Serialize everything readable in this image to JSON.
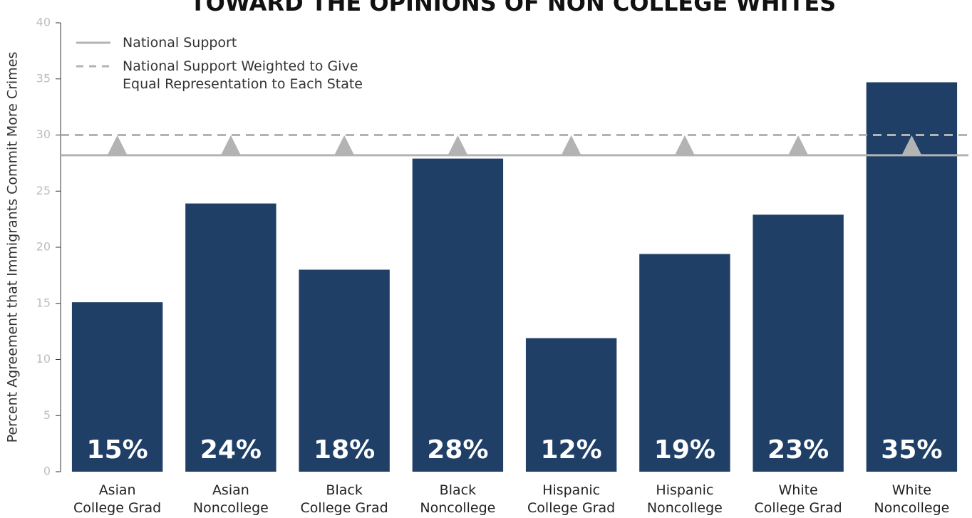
{
  "chart_data": {
    "type": "bar",
    "title": "TOWARD THE OPINIONS OF NON COLLEGE WHITES",
    "y_label": "Percent Agreement that Immigrants Commit More Crimes",
    "categories": [
      "Asian College Grad",
      "Asian Noncollege",
      "Black College Grad",
      "Black Noncollege",
      "Hispanic College Grad",
      "Hispanic Noncollege",
      "White College Grad",
      "White Noncollege"
    ],
    "values": [
      15.1,
      23.9,
      18.0,
      27.9,
      11.9,
      19.4,
      22.9,
      34.7
    ],
    "value_labels": [
      "15%",
      "24%",
      "18%",
      "28%",
      "12%",
      "19%",
      "23%",
      "35%"
    ],
    "color": "#1f3f66",
    "reference_lines": [
      {
        "name": "National Support",
        "value": 28.2,
        "color": "#b3b3b3",
        "style": "solid"
      },
      {
        "name": "National Support Weighted to Give Equal Representation to Each State",
        "value": 30.0,
        "color": "#b3b3b3",
        "style": "dashed"
      }
    ],
    "ylim": [
      0,
      40
    ],
    "yticks": [
      0,
      5,
      10,
      15,
      20,
      25,
      30,
      35,
      40
    ]
  }
}
